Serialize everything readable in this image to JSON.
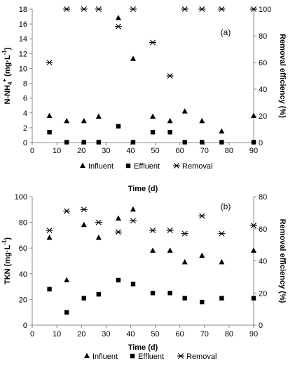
{
  "chart_data": [
    {
      "type": "scatter",
      "panel_label": "(a)",
      "xlabel": "Time (d)",
      "ylabel": "N-NH4+ (mg·L-1)",
      "ylabel_parts": {
        "base": "N-NH",
        "sub": "4",
        "sup1": "+",
        "unit": " (mg·L",
        "sup2": "-1",
        "close": ")"
      },
      "y2label": "Removal efficiency (%)",
      "xlim": [
        0,
        90
      ],
      "xticks": [
        "0",
        "10",
        "20",
        "30",
        "40",
        "50",
        "60",
        "70",
        "80",
        "90"
      ],
      "ylim": [
        0,
        18
      ],
      "yticks": [
        "0",
        "2",
        "4",
        "6",
        "8",
        "10",
        "12",
        "14",
        "16",
        "18"
      ],
      "y2lim": [
        0,
        100
      ],
      "y2ticks": [
        "0",
        "20",
        "40",
        "60",
        "80",
        "100"
      ],
      "legend_position": "bottom",
      "series": [
        {
          "name": "Influent",
          "axis": "left",
          "marker": "triangle",
          "points": [
            [
              7,
              3.6
            ],
            [
              14,
              2.9
            ],
            [
              21,
              2.9
            ],
            [
              27,
              3.5
            ],
            [
              35,
              16.8
            ],
            [
              41,
              11.3
            ],
            [
              49,
              3.5
            ],
            [
              56,
              2.9
            ],
            [
              62,
              4.2
            ],
            [
              69,
              2.9
            ],
            [
              77,
              1.5
            ],
            [
              90,
              3.6
            ]
          ]
        },
        {
          "name": "Effluent",
          "axis": "left",
          "marker": "square",
          "points": [
            [
              7,
              1.4
            ],
            [
              14,
              0.05
            ],
            [
              21,
              0.05
            ],
            [
              27,
              0.05
            ],
            [
              35,
              2.2
            ],
            [
              41,
              0.05
            ],
            [
              49,
              1.4
            ],
            [
              56,
              1.4
            ],
            [
              62,
              0.05
            ],
            [
              69,
              0.05
            ],
            [
              77,
              0.05
            ],
            [
              90,
              0.05
            ]
          ]
        },
        {
          "name": "Removal",
          "axis": "right",
          "marker": "asterisk",
          "points": [
            [
              7,
              60
            ],
            [
              14,
              100
            ],
            [
              21,
              100
            ],
            [
              27,
              100
            ],
            [
              35,
              87
            ],
            [
              41,
              100
            ],
            [
              49,
              75
            ],
            [
              56,
              50
            ],
            [
              62,
              100
            ],
            [
              69,
              100
            ],
            [
              77,
              100
            ],
            [
              90,
              100
            ]
          ]
        }
      ]
    },
    {
      "type": "scatter",
      "panel_label": "(b)",
      "xlabel": "Time (d)",
      "ylabel": "TKN (mg·L-1)",
      "ylabel_parts": {
        "base": "TKN",
        "unit": " (mg·L",
        "sup2": "-1",
        "close": ")"
      },
      "y2label": "Removal efficiency (%)",
      "xlim": [
        0,
        90
      ],
      "xticks": [
        "0",
        "10",
        "20",
        "30",
        "40",
        "50",
        "60",
        "70",
        "80",
        "90"
      ],
      "ylim": [
        0,
        100
      ],
      "yticks": [
        "0",
        "20",
        "40",
        "60",
        "80",
        "100"
      ],
      "y2lim": [
        0,
        80
      ],
      "y2ticks": [
        "0",
        "20",
        "40",
        "60",
        "80"
      ],
      "legend_position": "bottom",
      "series": [
        {
          "name": "Influent",
          "axis": "left",
          "marker": "triangle",
          "points": [
            [
              7,
              68
            ],
            [
              14,
              35
            ],
            [
              21,
              78
            ],
            [
              27,
              68
            ],
            [
              35,
              83
            ],
            [
              41,
              90
            ],
            [
              49,
              58
            ],
            [
              56,
              58
            ],
            [
              62,
              49
            ],
            [
              69,
              54
            ],
            [
              77,
              49
            ],
            [
              90,
              58
            ]
          ]
        },
        {
          "name": "Effluent",
          "axis": "left",
          "marker": "square",
          "points": [
            [
              7,
              28
            ],
            [
              14,
              10
            ],
            [
              21,
              21
            ],
            [
              27,
              24
            ],
            [
              35,
              35
            ],
            [
              41,
              32
            ],
            [
              49,
              25
            ],
            [
              56,
              25
            ],
            [
              62,
              21
            ],
            [
              69,
              18
            ],
            [
              77,
              21
            ],
            [
              90,
              21
            ]
          ]
        },
        {
          "name": "Removal",
          "axis": "right",
          "marker": "asterisk",
          "points": [
            [
              7,
              59
            ],
            [
              14,
              71
            ],
            [
              21,
              72
            ],
            [
              27,
              64
            ],
            [
              35,
              58
            ],
            [
              41,
              65
            ],
            [
              49,
              59
            ],
            [
              56,
              59
            ],
            [
              62,
              57
            ],
            [
              69,
              68
            ],
            [
              77,
              57
            ],
            [
              90,
              62
            ]
          ]
        }
      ]
    }
  ]
}
